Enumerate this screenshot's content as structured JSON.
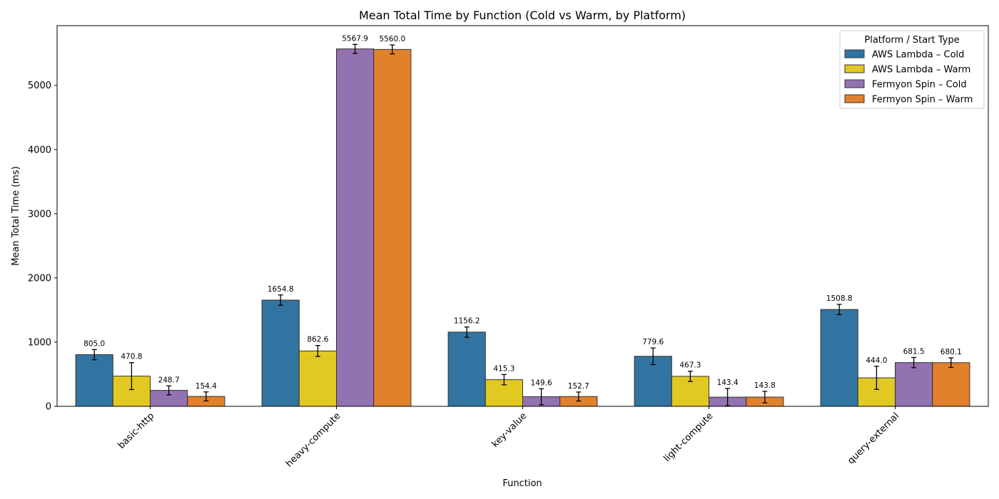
{
  "chart_data": {
    "type": "bar",
    "title": "Mean Total Time by Function (Cold vs Warm, by Platform)",
    "xlabel": "Function",
    "ylabel": "Mean Total Time (ms)",
    "ylim": [
      0,
      5930
    ],
    "yticks": [
      0,
      1000,
      2000,
      3000,
      4000,
      5000
    ],
    "grid": false,
    "categories": [
      "basic-http",
      "heavy-compute",
      "key-value",
      "light-compute",
      "query-external"
    ],
    "legend": {
      "title": "Platform / Start Type",
      "placement": "top-right"
    },
    "series": [
      {
        "name": "AWS Lambda – Cold",
        "color": "#3274a1",
        "values": [
          805.0,
          1654.8,
          1156.2,
          779.6,
          1508.8
        ],
        "errors": [
          80,
          80,
          80,
          130,
          80
        ],
        "labels": [
          "805.0",
          "1654.8",
          "1156.2",
          "779.6",
          "1508.8"
        ]
      },
      {
        "name": "AWS Lambda – Warm",
        "color": "#e1c921",
        "values": [
          470.8,
          862.6,
          415.3,
          467.3,
          444.0
        ],
        "errors": [
          210,
          85,
          80,
          80,
          180
        ],
        "labels": [
          "470.8",
          "862.6",
          "415.3",
          "467.3",
          "444.0"
        ]
      },
      {
        "name": "Fermyon Spin – Cold",
        "color": "#9372b2",
        "values": [
          248.7,
          5567.9,
          149.6,
          143.4,
          681.5
        ],
        "errors": [
          70,
          70,
          125,
          135,
          80
        ],
        "labels": [
          "248.7",
          "5567.9",
          "149.6",
          "143.4",
          "681.5"
        ]
      },
      {
        "name": "Fermyon Spin – Warm",
        "color": "#e1812c",
        "values": [
          154.4,
          5560.0,
          152.7,
          143.8,
          680.1
        ],
        "errors": [
          70,
          70,
          70,
          90,
          75
        ],
        "labels": [
          "154.4",
          "5560.0",
          "152.7",
          "143.8",
          "680.1"
        ]
      }
    ]
  }
}
